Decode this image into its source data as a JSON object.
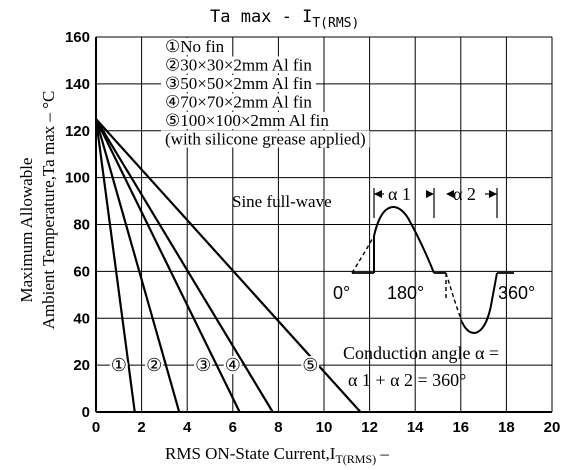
{
  "chart_data": {
    "type": "line",
    "title": "Ta max - I",
    "title_sub": "T(RMS)",
    "ylabel_line1": "Maximum Allowable",
    "ylabel_line2": "Ambient Temperature,Ta max – °C",
    "xlabel": "RMS ON-State Current,I",
    "xlabel_sub": "T(RMS)",
    "xlabel_suffix": " –",
    "xlim": [
      0,
      20
    ],
    "ylim": [
      0,
      160
    ],
    "xticks": [
      "0",
      "2",
      "4",
      "6",
      "8",
      "10",
      "12",
      "14",
      "16",
      "18",
      "20"
    ],
    "yticks": [
      "0",
      "20",
      "40",
      "60",
      "80",
      "100",
      "120",
      "140",
      "160"
    ],
    "grid": true,
    "series": [
      {
        "marker": "①",
        "label_x": 1.0,
        "x": [
          0,
          1.7
        ],
        "y": [
          125,
          0
        ]
      },
      {
        "marker": "②",
        "label_x": 2.55,
        "x": [
          0,
          3.65
        ],
        "y": [
          125,
          0
        ]
      },
      {
        "marker": "③",
        "label_x": 4.7,
        "x": [
          0,
          6.3
        ],
        "y": [
          125,
          0
        ]
      },
      {
        "marker": "④",
        "label_x": 6.0,
        "x": [
          0,
          7.75
        ],
        "y": [
          125,
          0
        ]
      },
      {
        "marker": "⑤",
        "label_x": 9.4,
        "x": [
          0,
          11.6
        ],
        "y": [
          125,
          0
        ]
      }
    ],
    "legend": [
      {
        "marker": "①",
        "text": "No fin"
      },
      {
        "marker": "②",
        "text": "30×30×2mm Al fin"
      },
      {
        "marker": "③",
        "text": "50×50×2mm Al fin"
      },
      {
        "marker": "④",
        "text": "70×70×2mm Al fin"
      },
      {
        "marker": "⑤",
        "text": "100×100×2mm Al fin"
      },
      {
        "marker": "",
        "text": "(with silicone grease applied)"
      }
    ],
    "annotations": {
      "sine_label": "Sine full-wave",
      "alpha1": "α 1",
      "alpha2": "α 2",
      "deg0": "0°",
      "deg180": "180°",
      "deg360": "360°",
      "conduction_line1": "Conduction angle α =",
      "conduction_line2": "α 1 + α 2 = 360°"
    }
  }
}
